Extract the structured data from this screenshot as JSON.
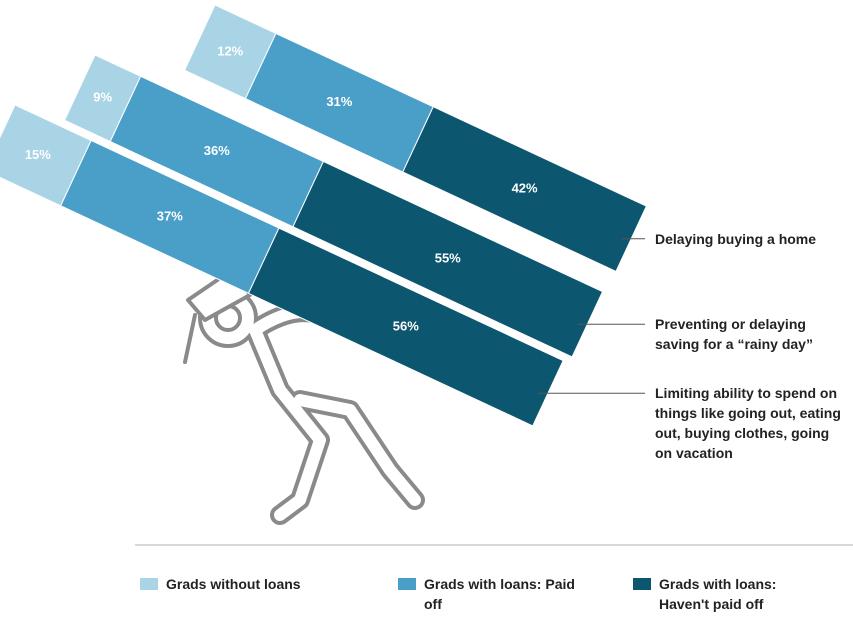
{
  "chart_data": {
    "type": "stacked-bar",
    "categories": [
      "Delaying buying a home",
      "Preventing or delaying saving for a “rainy day”",
      "Limiting ability to spend on things like going out, eating out, buying clothes, going on vacation"
    ],
    "series": [
      {
        "name": "Grads without loans",
        "color": "#a9d4e6",
        "values": [
          12,
          9,
          15
        ],
        "value_labels": [
          "12%",
          "9%",
          "15%"
        ]
      },
      {
        "name": "Grads with loans: Paid off",
        "color": "#4a9fc8",
        "values": [
          31,
          36,
          37
        ],
        "value_labels": [
          "31%",
          "36%",
          "37%"
        ]
      },
      {
        "name": "Grads with loans: Haven't paid off",
        "color": "#0d5670",
        "values": [
          42,
          55,
          56
        ],
        "value_labels": [
          "42%",
          "55%",
          "56%"
        ]
      }
    ]
  }
}
